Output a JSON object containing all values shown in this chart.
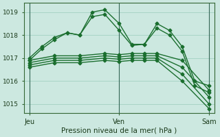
{
  "xlabel": "Pression niveau de la mer( hPa )",
  "xtick_labels": [
    "Jeu",
    "Ven",
    "Sam"
  ],
  "xtick_positions": [
    0,
    0.5,
    1.0
  ],
  "ytick_labels": [
    "1015",
    "1016",
    "1017",
    "1018",
    "1019"
  ],
  "ytick_vals": [
    1015,
    1016,
    1017,
    1018,
    1019
  ],
  "ylim": [
    1014.6,
    1019.4
  ],
  "background_color": "#cce8e0",
  "grid_color": "#99ccbb",
  "line_color": "#1a6e2e",
  "marker": "D",
  "markersize": 2.5,
  "linewidth": 1.0,
  "lines": [
    {
      "x": [
        0.0,
        0.07,
        0.14,
        0.21,
        0.28,
        0.35,
        0.42,
        0.5,
        0.57,
        0.64,
        0.71,
        0.78,
        0.85,
        0.92,
        1.0
      ],
      "y": [
        1016.9,
        1017.4,
        1017.8,
        1018.1,
        1018.0,
        1019.0,
        1019.1,
        1018.5,
        1017.6,
        1017.6,
        1018.5,
        1018.2,
        1017.5,
        1016.0,
        1015.8
      ]
    },
    {
      "x": [
        0.0,
        0.07,
        0.14,
        0.21,
        0.28,
        0.35,
        0.42,
        0.5,
        0.57,
        0.64,
        0.71,
        0.78,
        0.85,
        0.92,
        1.0
      ],
      "y": [
        1017.0,
        1017.5,
        1017.9,
        1018.1,
        1018.0,
        1018.8,
        1018.9,
        1018.2,
        1017.55,
        1017.6,
        1018.3,
        1018.0,
        1017.3,
        1015.8,
        1015.5
      ]
    },
    {
      "x": [
        0.0,
        0.14,
        0.28,
        0.42,
        0.5,
        0.57,
        0.64,
        0.71,
        0.85,
        1.0
      ],
      "y": [
        1016.9,
        1017.1,
        1017.1,
        1017.2,
        1017.15,
        1017.2,
        1017.2,
        1017.2,
        1016.9,
        1015.6
      ]
    },
    {
      "x": [
        0.0,
        0.14,
        0.28,
        0.42,
        0.5,
        0.57,
        0.64,
        0.71,
        0.85,
        1.0
      ],
      "y": [
        1016.8,
        1017.0,
        1017.0,
        1017.1,
        1017.05,
        1017.1,
        1017.1,
        1017.1,
        1016.6,
        1015.3
      ]
    },
    {
      "x": [
        0.0,
        0.14,
        0.28,
        0.42,
        0.5,
        0.57,
        0.64,
        0.71,
        0.85,
        1.0
      ],
      "y": [
        1016.7,
        1016.9,
        1016.9,
        1017.0,
        1016.95,
        1017.0,
        1017.0,
        1017.0,
        1016.3,
        1015.0
      ]
    },
    {
      "x": [
        0.0,
        0.14,
        0.28,
        0.42,
        0.5,
        0.57,
        0.64,
        0.71,
        0.85,
        1.0
      ],
      "y": [
        1016.6,
        1016.8,
        1016.8,
        1016.9,
        1016.85,
        1016.9,
        1016.9,
        1016.9,
        1016.0,
        1014.8
      ]
    }
  ],
  "vline_x": [
    0.0,
    0.5,
    1.0
  ],
  "vline_color": "#336655",
  "vline_lw": 0.8
}
